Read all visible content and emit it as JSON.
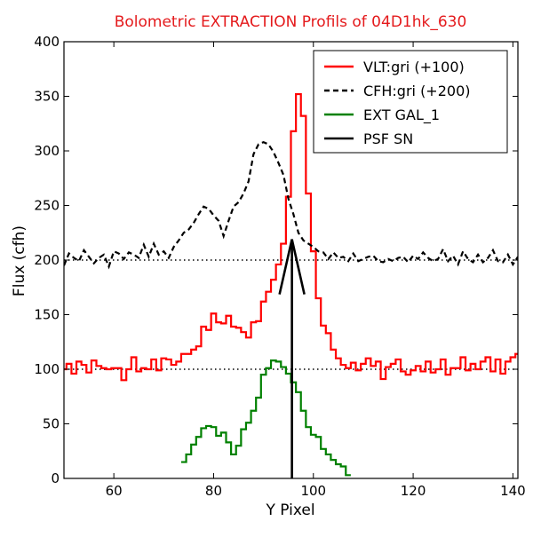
{
  "chart_data": {
    "type": "line",
    "title": "Bolometric EXTRACTION Profils of 04D1hk_630",
    "xlabel": "Y Pixel",
    "ylabel": "Flux (cfh)",
    "xlim": [
      50,
      141
    ],
    "ylim": [
      0,
      400
    ],
    "xticks": [
      60,
      80,
      100,
      120,
      140
    ],
    "yticks": [
      0,
      50,
      100,
      150,
      200,
      250,
      300,
      350,
      400
    ],
    "grid": false,
    "legend_position": "top-right",
    "reference_lines": [
      100,
      200
    ],
    "series": [
      {
        "name": "VLT:gri (+100)",
        "color": "#ff0000",
        "style": "steps",
        "x": [
          50,
          51,
          52,
          53,
          54,
          55,
          56,
          57,
          58,
          59,
          60,
          61,
          62,
          63,
          64,
          65,
          66,
          67,
          68,
          69,
          70,
          71,
          72,
          73,
          74,
          75,
          76,
          77,
          78,
          79,
          80,
          81,
          82,
          83,
          84,
          85,
          86,
          87,
          88,
          89,
          90,
          91,
          92,
          93,
          94,
          95,
          96,
          97,
          98,
          99,
          100,
          101,
          102,
          103,
          104,
          105,
          106,
          107,
          108,
          109,
          110,
          111,
          112,
          113,
          114,
          115,
          116,
          117,
          118,
          119,
          120,
          121,
          122,
          123,
          124,
          125,
          126,
          127,
          128,
          129,
          130,
          131,
          132,
          133,
          134,
          135,
          136,
          137,
          138,
          139,
          140,
          141
        ],
        "values": [
          100,
          105,
          96,
          107,
          104,
          97,
          108,
          103,
          101,
          100,
          101,
          101,
          90,
          100,
          111,
          98,
          101,
          100,
          109,
          99,
          110,
          109,
          104,
          107,
          114,
          114,
          118,
          121,
          139,
          136,
          151,
          143,
          142,
          149,
          139,
          138,
          134,
          129,
          143,
          144,
          162,
          171,
          182,
          196,
          215,
          258,
          318,
          352,
          332,
          261,
          208,
          165,
          140,
          133,
          118,
          110,
          104,
          101,
          106,
          99,
          105,
          110,
          103,
          107,
          91,
          102,
          105,
          109,
          98,
          95,
          99,
          103,
          98,
          107,
          97,
          100,
          109,
          95,
          101,
          101,
          111,
          99,
          105,
          100,
          107,
          111,
          98,
          109,
          96,
          107,
          111,
          114
        ],
        "note": "offset +100"
      },
      {
        "name": "CFH:gri (+200)",
        "color": "#000000",
        "style": "dashed",
        "x": [
          50,
          51,
          52,
          53,
          54,
          55,
          56,
          57,
          58,
          59,
          60,
          61,
          62,
          63,
          64,
          65,
          66,
          67,
          68,
          69,
          70,
          71,
          72,
          73,
          74,
          75,
          76,
          77,
          78,
          79,
          80,
          81,
          82,
          83,
          84,
          85,
          86,
          87,
          88,
          89,
          90,
          91,
          92,
          93,
          94,
          95,
          96,
          97,
          98,
          99,
          100,
          101,
          102,
          103,
          104,
          105,
          106,
          107,
          108,
          109,
          110,
          111,
          112,
          113,
          114,
          115,
          116,
          117,
          118,
          119,
          120,
          121,
          122,
          123,
          124,
          125,
          126,
          127,
          128,
          129,
          130,
          131,
          132,
          133,
          134,
          135,
          136,
          137,
          138,
          139,
          140,
          141
        ],
        "values": [
          195,
          206,
          202,
          199,
          209,
          203,
          197,
          202,
          205,
          194,
          208,
          206,
          201,
          207,
          205,
          202,
          214,
          203,
          215,
          205,
          208,
          202,
          212,
          218,
          225,
          228,
          234,
          242,
          249,
          247,
          241,
          236,
          222,
          236,
          249,
          253,
          261,
          272,
          297,
          306,
          308,
          306,
          299,
          289,
          278,
          256,
          242,
          225,
          218,
          215,
          212,
          208,
          207,
          201,
          207,
          202,
          203,
          199,
          206,
          199,
          201,
          203,
          204,
          199,
          198,
          201,
          199,
          202,
          203,
          198,
          204,
          201,
          207,
          202,
          199,
          201,
          210,
          199,
          204,
          196,
          208,
          201,
          198,
          205,
          198,
          202,
          209,
          199,
          198,
          205,
          196,
          203
        ]
      },
      {
        "name": "EXT GAL_1",
        "color": "#008000",
        "style": "steps",
        "x": [
          74,
          75,
          76,
          77,
          78,
          79,
          80,
          81,
          82,
          83,
          84,
          85,
          86,
          87,
          88,
          89,
          90,
          91,
          92,
          93,
          94,
          95,
          96,
          97,
          98,
          99,
          100,
          101,
          102,
          103,
          104,
          105,
          106,
          107
        ],
        "values": [
          15,
          22,
          31,
          38,
          46,
          48,
          47,
          39,
          42,
          33,
          22,
          30,
          45,
          51,
          62,
          74,
          95,
          101,
          108,
          107,
          102,
          96,
          88,
          79,
          62,
          47,
          40,
          38,
          27,
          22,
          17,
          13,
          11,
          3
        ]
      },
      {
        "name": "PSF SN",
        "color": "#000000",
        "style": "solid",
        "x": [
          95.7,
          95.7
        ],
        "values": [
          0,
          219
        ],
        "arrow_peak": 219
      }
    ]
  }
}
